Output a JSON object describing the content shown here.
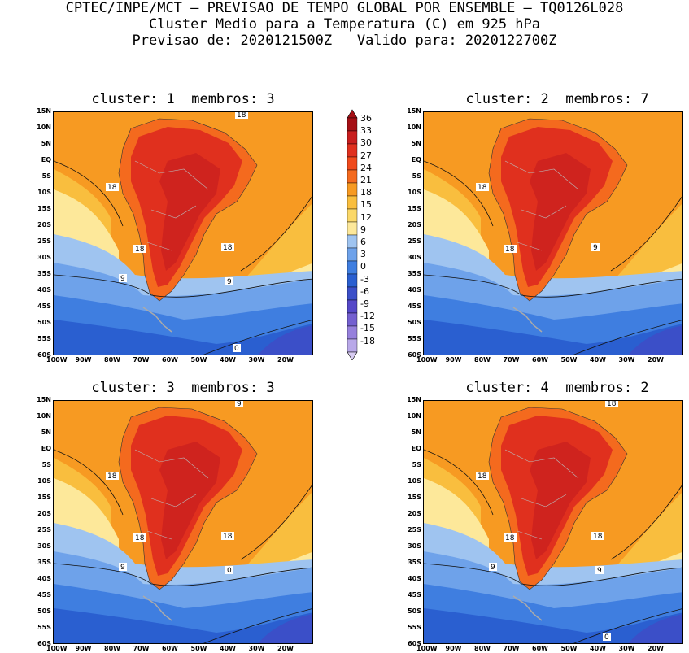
{
  "header": {
    "line1": "CPTEC/INPE/MCT – PREVISAO DE TEMPO GLOBAL POR ENSEMBLE – TQ0126L028",
    "line2": "Cluster Medio para a Temperatura (C) em 925 hPa",
    "line3": "Previsao de: 2020121500Z   Valido para: 2020122700Z"
  },
  "panels": [
    {
      "title": "cluster: 1  membros: 3",
      "contour_labels": [
        "18",
        "18",
        "18",
        "18",
        "9",
        "9",
        "0"
      ]
    },
    {
      "title": "cluster: 2  membros: 7",
      "contour_labels": [
        "18",
        "18",
        "9"
      ]
    },
    {
      "title": "cluster: 3  membros: 3",
      "contour_labels": [
        "18",
        "18",
        "18",
        "9",
        "9",
        "0"
      ]
    },
    {
      "title": "cluster: 4  membros: 2",
      "contour_labels": [
        "18",
        "18",
        "18",
        "18",
        "9",
        "9",
        "0"
      ]
    }
  ],
  "axes": {
    "lat_labels": [
      "15N",
      "10N",
      "5N",
      "EQ",
      "5S",
      "10S",
      "15S",
      "20S",
      "25S",
      "30S",
      "35S",
      "40S",
      "45S",
      "50S",
      "55S",
      "60S"
    ],
    "lon_labels": [
      "100W",
      "90W",
      "80W",
      "70W",
      "60W",
      "50W",
      "40W",
      "30W",
      "20W"
    ]
  },
  "colorbar": {
    "labels": [
      "36",
      "33",
      "30",
      "27",
      "24",
      "21",
      "18",
      "15",
      "12",
      "9",
      "6",
      "3",
      "0",
      "-3",
      "-6",
      "-9",
      "-12",
      "-15",
      "-18"
    ],
    "colors": [
      "#a50f15",
      "#c81e1e",
      "#e0301e",
      "#f04a1c",
      "#f46a1e",
      "#f79a22",
      "#f9be3e",
      "#fbd868",
      "#fde89a",
      "#9fc4f0",
      "#6ea2ea",
      "#3f7ee0",
      "#2a5fd0",
      "#3b4fc8",
      "#5548c8",
      "#7460d0",
      "#9680dc",
      "#b8a8e8",
      "#d8ccf2"
    ]
  },
  "map_colors": {
    "ocean_warm": "#f79a22",
    "ocean_mild": "#f9be3e",
    "ocean_cool": "#fde89a",
    "cold1": "#9fc4f0",
    "cold2": "#6ea2ea",
    "cold3": "#3f7ee0",
    "cold4": "#2a5fd0",
    "cold5": "#3b4fc8",
    "land1": "#f46a1e",
    "land2": "#e0301e",
    "land3": "#c81e1e"
  }
}
